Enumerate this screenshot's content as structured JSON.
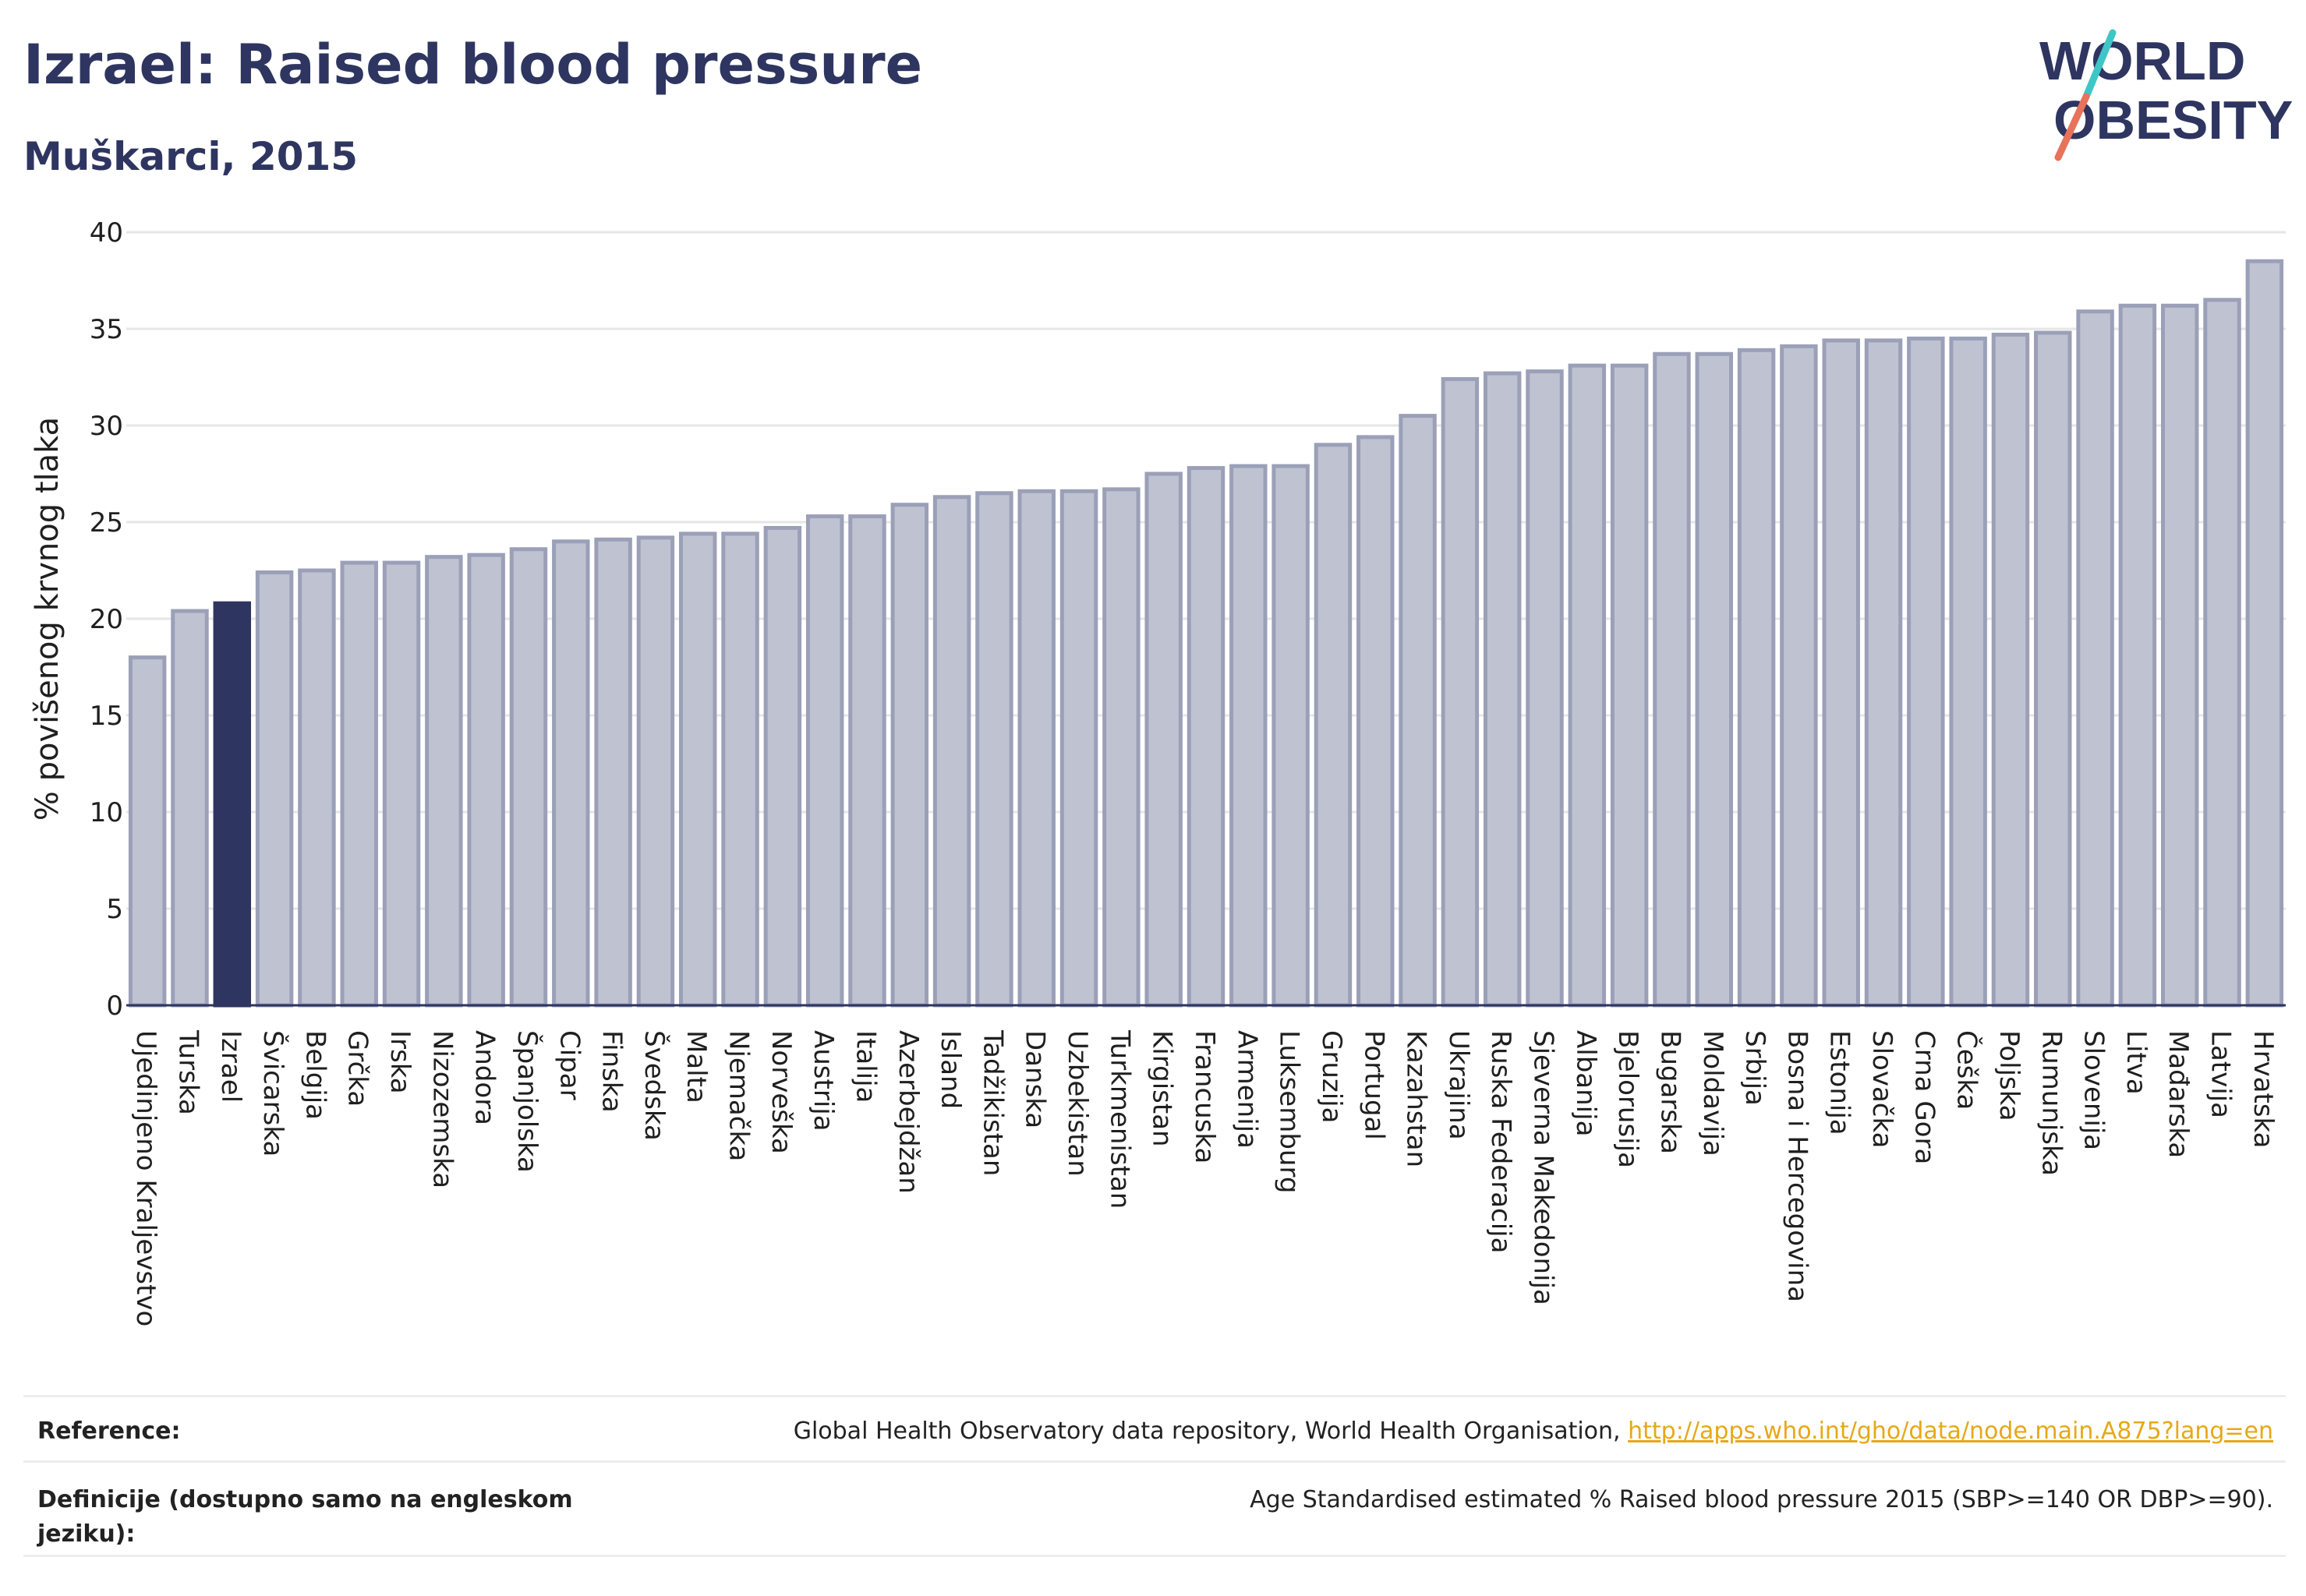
{
  "header": {
    "title": "Izrael: Raised blood pressure",
    "subtitle": "Muškarci, 2015"
  },
  "logo": {
    "line1": "WORLD",
    "line2": "OBESITY",
    "text_color": "#2e3560",
    "slash_colors": [
      "#3ec6c6",
      "#e8725a"
    ]
  },
  "colors": {
    "bar_default": "#bfc2d1",
    "bar_default_border": "#9ba0b8",
    "bar_highlight": "#2e3560",
    "grid": "#e6e6e6",
    "axis_text": "#1f1f1f"
  },
  "chart_data": {
    "type": "bar",
    "ylabel": "% povišenog krvnog tlaka",
    "ylim": [
      0,
      40
    ],
    "yticks": [
      0,
      5,
      10,
      15,
      20,
      25,
      30,
      35,
      40
    ],
    "grid": true,
    "highlight": "Izrael",
    "categories": [
      "Ujedinjeno Kraljevstvo",
      "Turska",
      "Izrael",
      "Švicarska",
      "Belgija",
      "Grčka",
      "Irska",
      "Nizozemska",
      "Andora",
      "Španjolska",
      "Cipar",
      "Finska",
      "Švedska",
      "Malta",
      "Njemačka",
      "Norveška",
      "Austrija",
      "Italija",
      "Azerbejdžan",
      "Island",
      "Tadžikistan",
      "Danska",
      "Uzbekistan",
      "Turkmenistan",
      "Kirgistan",
      "Francuska",
      "Armenija",
      "Luksemburg",
      "Gruzija",
      "Portugal",
      "Kazahstan",
      "Ukrajina",
      "Ruska Federacija",
      "Sjeverna Makedonija",
      "Albanija",
      "Bjelorusija",
      "Bugarska",
      "Moldavija",
      "Srbija",
      "Bosna i Hercegovina",
      "Estonija",
      "Slovačka",
      "Crna Gora",
      "Češka",
      "Poljska",
      "Rumunjska",
      "Slovenija",
      "Litva",
      "Mađarska",
      "Latvija",
      "Hrvatska"
    ],
    "values": [
      18.0,
      20.4,
      20.8,
      22.4,
      22.5,
      22.9,
      22.9,
      23.2,
      23.3,
      23.6,
      24.0,
      24.1,
      24.2,
      24.4,
      24.4,
      24.7,
      25.3,
      25.3,
      25.9,
      26.3,
      26.5,
      26.6,
      26.6,
      26.7,
      27.5,
      27.8,
      27.9,
      27.9,
      29.0,
      29.4,
      30.5,
      32.4,
      32.7,
      32.8,
      33.1,
      33.1,
      33.7,
      33.7,
      33.9,
      34.1,
      34.4,
      34.4,
      34.5,
      34.5,
      34.7,
      34.8,
      35.9,
      36.2,
      36.2,
      36.5,
      38.5
    ]
  },
  "footer": {
    "reference_label": "Reference:",
    "reference_text": "Global Health Observatory data repository, World Health Organisation,",
    "reference_link": "http://apps.who.int/gho/data/node.main.A875?lang=en",
    "definition_label": "Definicije (dostupno samo na engleskom jeziku):",
    "definition_text": "Age Standardised estimated % Raised blood pressure 2015 (SBP>=140 OR DBP>=90)."
  }
}
